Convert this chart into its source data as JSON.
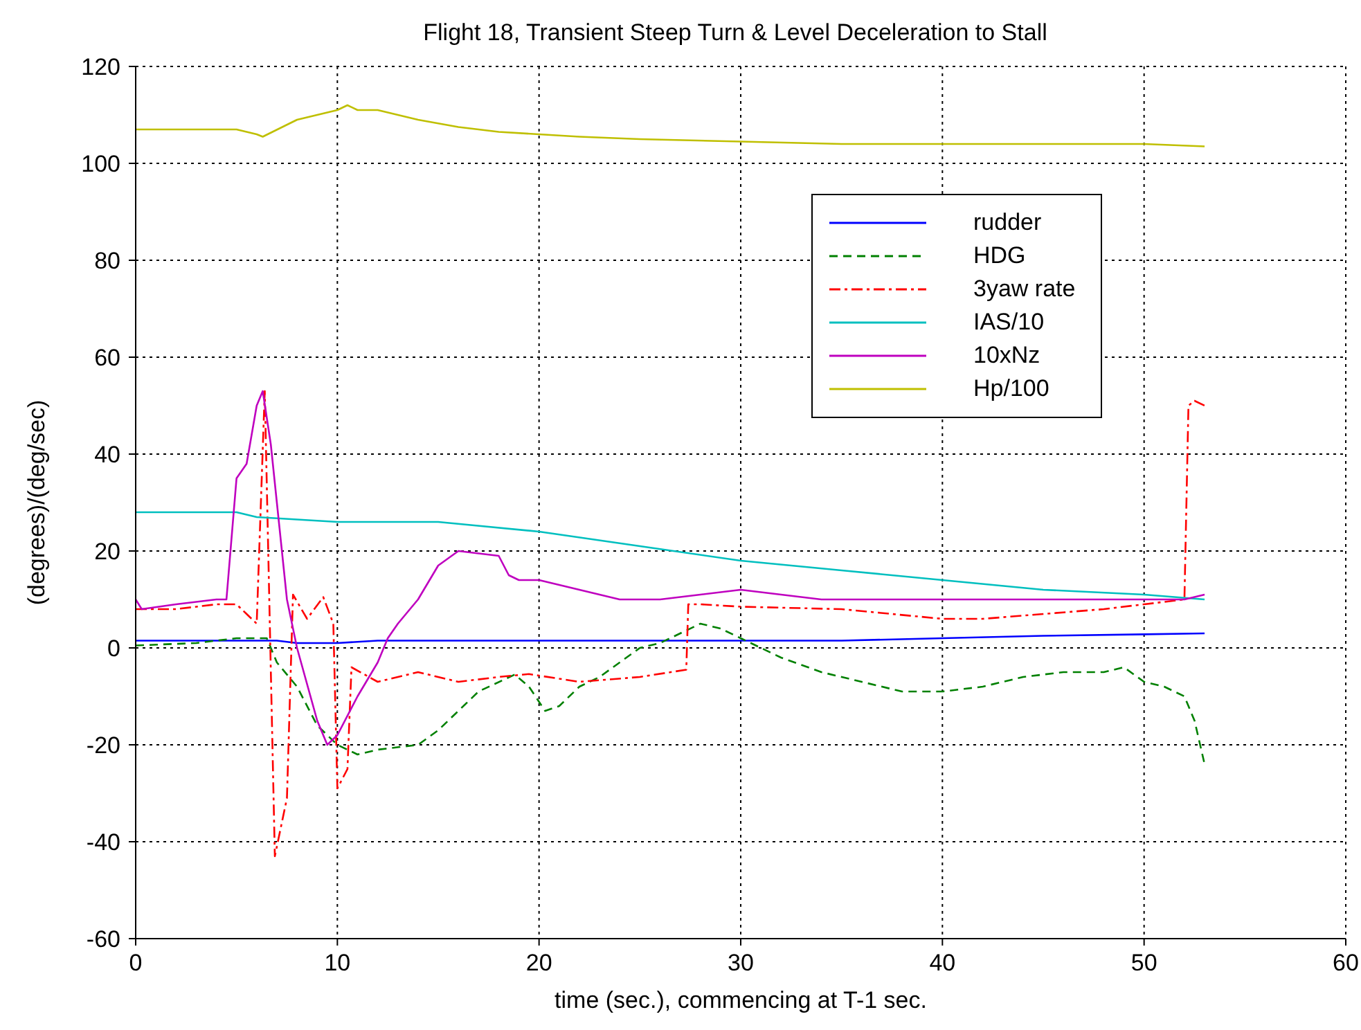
{
  "chart_data": {
    "type": "line",
    "title": "Flight 18, Transient Steep Turn & Level Deceleration to Stall",
    "xlabel": "time (sec.), commencing at T-1 sec.",
    "ylabel": "(degrees)/(deg/sec)",
    "xlim": [
      0,
      60
    ],
    "xticks": [
      0,
      10,
      20,
      30,
      40,
      50,
      60
    ],
    "ylim": [
      -60,
      120
    ],
    "yticks": [
      -60,
      -40,
      -20,
      0,
      20,
      40,
      60,
      80,
      100,
      120
    ],
    "grid": true,
    "legend": "top right",
    "marker": "none",
    "series": [
      {
        "name": "rudder",
        "color": "#0000ff",
        "line_style": "solid",
        "x": [
          0,
          5,
          7,
          8,
          10,
          12,
          20,
          30,
          35,
          40,
          45,
          50,
          53
        ],
        "values": [
          1.5,
          1.5,
          1.5,
          1,
          1,
          1.5,
          1.5,
          1.5,
          1.5,
          2,
          2.5,
          2.8,
          3
        ]
      },
      {
        "name": "HDG",
        "color": "#008000",
        "line_style": "dashed",
        "x": [
          0,
          3,
          5,
          6.5,
          7,
          8,
          9,
          10,
          11,
          12,
          14,
          15,
          16,
          17,
          18.8,
          19.5,
          20.3,
          21,
          22,
          23,
          24,
          25,
          26,
          27,
          28,
          29,
          30,
          31,
          32,
          34,
          36,
          38,
          40,
          42,
          44,
          46,
          48,
          49,
          50,
          51,
          52,
          52.5,
          53
        ],
        "values": [
          0.5,
          1,
          2,
          2,
          -3,
          -8,
          -16,
          -20,
          -22,
          -21,
          -20,
          -17,
          -13,
          -9,
          -5.5,
          -8,
          -13,
          -12,
          -8,
          -6,
          -3,
          0,
          1,
          3,
          5,
          4,
          2,
          0,
          -2,
          -5,
          -7,
          -9,
          -9,
          -8,
          -6,
          -5,
          -5,
          -4,
          -7,
          -8,
          -10,
          -15,
          -24
        ]
      },
      {
        "name": "3yaw rate",
        "color": "#ff0000",
        "line_style": "dashdot",
        "x": [
          0,
          2,
          4,
          5,
          5.5,
          6,
          6.4,
          6.9,
          7.5,
          7.8,
          8.5,
          9.3,
          9.8,
          10,
          10.5,
          10.7,
          12,
          13,
          14,
          16,
          18,
          19.5,
          22,
          25,
          27.3,
          27.4,
          28,
          30,
          35,
          40,
          42,
          45,
          48,
          50,
          52,
          52.2,
          52.5,
          53
        ],
        "values": [
          8,
          8,
          9,
          9,
          7,
          5,
          53,
          -43,
          -31,
          11,
          6,
          10.5,
          5,
          -29,
          -25,
          -4,
          -7,
          -6,
          -5,
          -7,
          -6,
          -5.4,
          -7,
          -6,
          -4.5,
          9,
          9,
          8.5,
          8,
          6,
          6,
          7,
          8,
          9,
          10,
          50,
          51,
          50
        ]
      },
      {
        "name": "IAS/10",
        "color": "#00bfbf",
        "line_style": "solid",
        "x": [
          0,
          5,
          6,
          10,
          15,
          20,
          25,
          30,
          35,
          40,
          45,
          50,
          53
        ],
        "values": [
          28,
          28,
          27,
          26,
          26,
          24,
          21,
          18,
          16,
          14,
          12,
          11,
          10
        ]
      },
      {
        "name": "10xNz",
        "color": "#bf00bf",
        "line_style": "solid",
        "x": [
          0,
          0.3,
          2,
          4,
          4.5,
          5,
          5.5,
          6,
          6.3,
          6.7,
          7.5,
          8,
          9,
          9.5,
          10,
          11,
          12,
          12.5,
          13,
          14,
          15,
          16,
          18,
          18.5,
          19,
          20,
          22,
          24,
          26,
          28,
          30,
          32,
          34,
          40,
          45,
          50,
          52,
          53
        ],
        "values": [
          10,
          8,
          9,
          10,
          10,
          35,
          38,
          50,
          53,
          42,
          10,
          0,
          -15,
          -20,
          -18,
          -10,
          -3,
          2,
          5,
          10,
          17,
          20,
          19,
          15,
          14,
          14,
          12,
          10,
          10,
          11,
          12,
          11,
          10,
          10,
          10,
          10,
          10,
          11
        ]
      },
      {
        "name": "Hp/100",
        "color": "#bfbf00",
        "line_style": "solid",
        "x": [
          0,
          5,
          6,
          6.3,
          8,
          10,
          10.5,
          11,
          12,
          14,
          16,
          18,
          20,
          22,
          25,
          30,
          35,
          40,
          45,
          50,
          53
        ],
        "values": [
          107,
          107,
          106,
          105.5,
          109,
          111,
          112,
          111,
          111,
          109,
          107.5,
          106.5,
          106,
          105.5,
          105,
          104.5,
          104,
          104,
          104,
          104,
          103.5
        ]
      }
    ]
  }
}
